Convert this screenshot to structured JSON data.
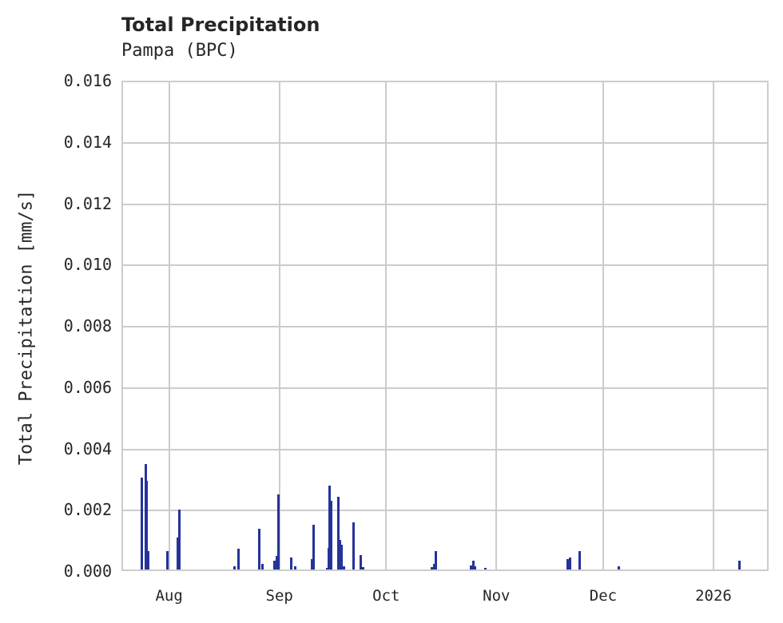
{
  "chart_data": {
    "type": "bar",
    "title": "Total Precipitation",
    "subtitle": "Pampa (BPC)",
    "xlabel": "",
    "ylabel": "Total Precipitation [mm/s]",
    "ylim": [
      0,
      0.016
    ],
    "xrange_days_from_aug1": [
      -13.4,
      168.5
    ],
    "grid": true,
    "bar_color": "#25339a",
    "grid_color": "#cccccc",
    "yticks": [
      {
        "value": 0.0,
        "label": "0.000"
      },
      {
        "value": 0.002,
        "label": "0.002"
      },
      {
        "value": 0.004,
        "label": "0.004"
      },
      {
        "value": 0.006,
        "label": "0.006"
      },
      {
        "value": 0.008,
        "label": "0.008"
      },
      {
        "value": 0.01,
        "label": "0.010"
      },
      {
        "value": 0.012,
        "label": "0.012"
      },
      {
        "value": 0.014,
        "label": "0.014"
      },
      {
        "value": 0.016,
        "label": "0.016"
      }
    ],
    "xticks": [
      {
        "day": 0,
        "label": "Aug"
      },
      {
        "day": 31,
        "label": "Sep"
      },
      {
        "day": 61,
        "label": "Oct"
      },
      {
        "day": 92,
        "label": "Nov"
      },
      {
        "day": 122,
        "label": "Dec"
      },
      {
        "day": 153,
        "label": "2026"
      }
    ],
    "series": [
      {
        "name": "Total Precipitation",
        "points": [
          {
            "day": -7.8,
            "value": 0.003
          },
          {
            "day": -6.7,
            "value": 0.00345
          },
          {
            "day": -6.4,
            "value": 0.0029
          },
          {
            "day": -6.1,
            "value": 0.0006
          },
          {
            "day": -0.7,
            "value": 0.0006
          },
          {
            "day": 2.4,
            "value": 0.00105
          },
          {
            "day": 2.7,
            "value": 0.00195
          },
          {
            "day": 18.2,
            "value": 0.0001
          },
          {
            "day": 19.3,
            "value": 0.00068
          },
          {
            "day": 25.3,
            "value": 0.00133
          },
          {
            "day": 26.2,
            "value": 0.00018
          },
          {
            "day": 29.4,
            "value": 0.00028
          },
          {
            "day": 30.2,
            "value": 0.00045
          },
          {
            "day": 30.6,
            "value": 0.00245
          },
          {
            "day": 34.3,
            "value": 0.0004
          },
          {
            "day": 35.3,
            "value": 0.0001
          },
          {
            "day": 40.0,
            "value": 0.00035
          },
          {
            "day": 40.5,
            "value": 0.00147
          },
          {
            "day": 44.3,
            "value": 5e-05
          },
          {
            "day": 44.7,
            "value": 0.0007
          },
          {
            "day": 45.0,
            "value": 0.00273
          },
          {
            "day": 45.4,
            "value": 0.00225
          },
          {
            "day": 47.5,
            "value": 0.00238
          },
          {
            "day": 48.0,
            "value": 0.00097
          },
          {
            "day": 48.4,
            "value": 0.0008
          },
          {
            "day": 49.1,
            "value": 0.0001
          },
          {
            "day": 51.7,
            "value": 0.00153
          },
          {
            "day": 53.8,
            "value": 0.00047
          },
          {
            "day": 54.5,
            "value": 8e-05
          },
          {
            "day": 73.7,
            "value": 8e-05
          },
          {
            "day": 74.3,
            "value": 0.00018
          },
          {
            "day": 74.8,
            "value": 0.0006
          },
          {
            "day": 84.8,
            "value": 0.00012
          },
          {
            "day": 85.4,
            "value": 0.00028
          },
          {
            "day": 85.9,
            "value": 0.0001
          },
          {
            "day": 88.8,
            "value": 5e-05
          },
          {
            "day": 112.0,
            "value": 0.00035
          },
          {
            "day": 112.5,
            "value": 0.0004
          },
          {
            "day": 115.3,
            "value": 0.0006
          },
          {
            "day": 126.2,
            "value": 0.0001
          },
          {
            "day": 160.3,
            "value": 0.00028
          }
        ]
      }
    ]
  }
}
